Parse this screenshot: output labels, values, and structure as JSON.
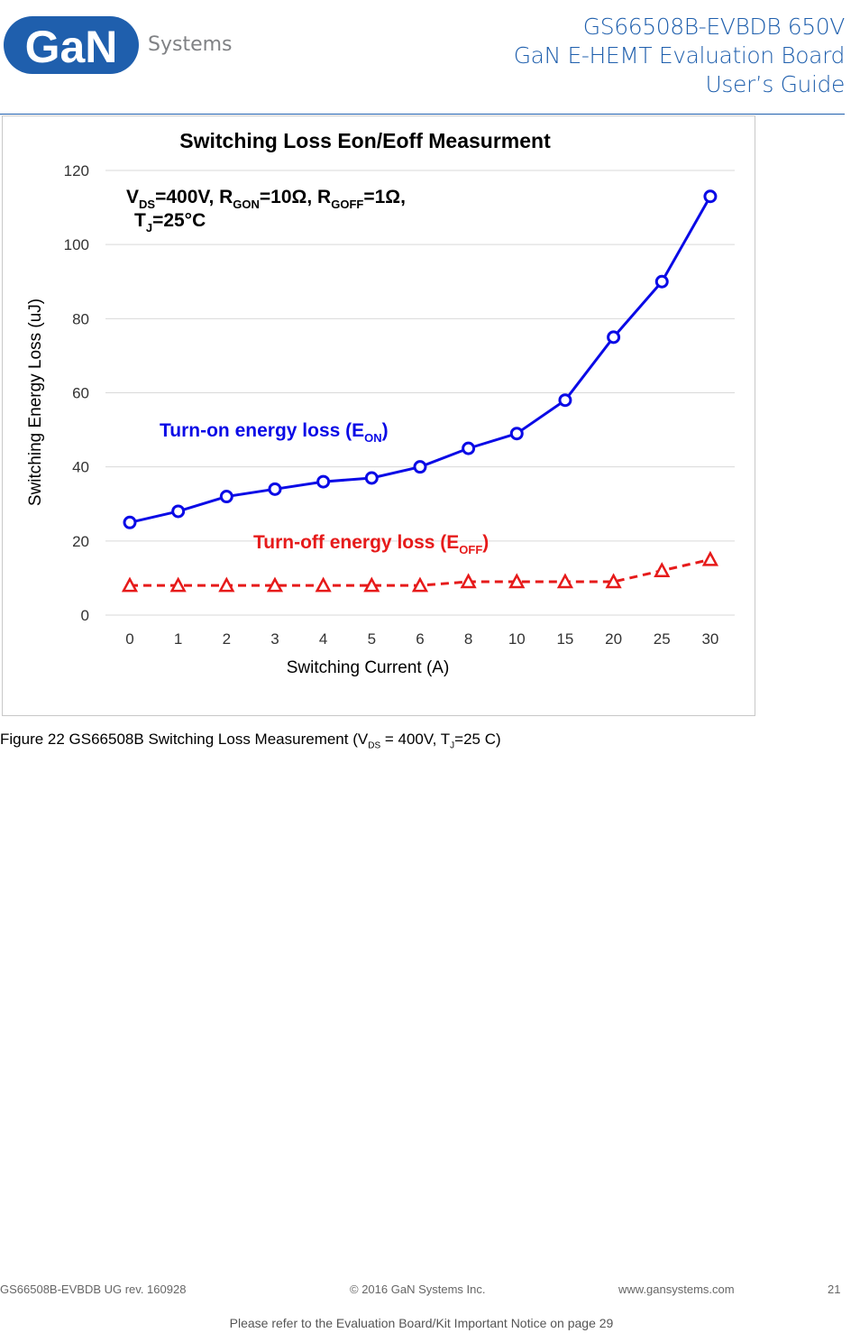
{
  "header": {
    "logo_text_main": "GaN",
    "logo_text_sub": "Systems",
    "line1": "GS66508B-EVBDB 650V",
    "line2": "GaN E-HEMT Evaluation Board",
    "line3": "User’s Guide"
  },
  "colors": {
    "brand_blue": "#1f5fad",
    "eon_blue": "#0a0ae6",
    "eoff_red": "#e61a1a"
  },
  "chart_data": {
    "type": "line",
    "title": "Switching Loss Eon/Eoff Measurment",
    "xlabel": "Switching Current (A)",
    "ylabel": "Switching Energy Loss (uJ)",
    "categories": [
      "0",
      "1",
      "2",
      "3",
      "4",
      "5",
      "6",
      "8",
      "10",
      "15",
      "20",
      "25",
      "30"
    ],
    "ylim": [
      0,
      120
    ],
    "yticks": [
      0,
      20,
      40,
      60,
      80,
      100,
      120
    ],
    "grid": true,
    "conditions": {
      "line1": {
        "v": "V",
        "v_sub": "DS",
        "v_rest": "=400V, R",
        "rgon_sub": "GON",
        "rgon_rest": "=10Ω, R",
        "rgoff_sub": "GOFF",
        "rgoff_rest": "=1Ω,"
      },
      "line2": {
        "t": "T",
        "t_sub": "J",
        "t_rest": "=25°C"
      }
    },
    "series": [
      {
        "name": "Turn-on energy loss (EON)",
        "label_main": "Turn-on energy loss (E",
        "label_sub": "ON",
        "label_end": ")",
        "marker": "circle",
        "line_style": "solid",
        "values": [
          25,
          28,
          32,
          34,
          36,
          37,
          40,
          45,
          49,
          58,
          75,
          90,
          113
        ]
      },
      {
        "name": "Turn-off energy loss (EOFF)",
        "label_main": "Turn-off energy loss (E",
        "label_sub": "OFF",
        "label_end": ")",
        "marker": "triangle",
        "line_style": "dashed",
        "values": [
          8,
          8,
          8,
          8,
          8,
          8,
          8,
          9,
          9,
          9,
          9,
          12,
          15
        ]
      }
    ]
  },
  "caption": {
    "prefix": "Figure 22 GS66508B Switching Loss Measurement (V",
    "sub1": "DS",
    "mid": " = 400V, T",
    "sub2": "J",
    "suffix": "=25 C)"
  },
  "footer": {
    "doc": "GS66508B-EVBDB UG rev. 160928",
    "copyright": "© 2016 GaN Systems Inc.",
    "website": "www.gansystems.com",
    "page": "21",
    "notice": "Please refer to the Evaluation Board/Kit Important Notice on page 29"
  }
}
